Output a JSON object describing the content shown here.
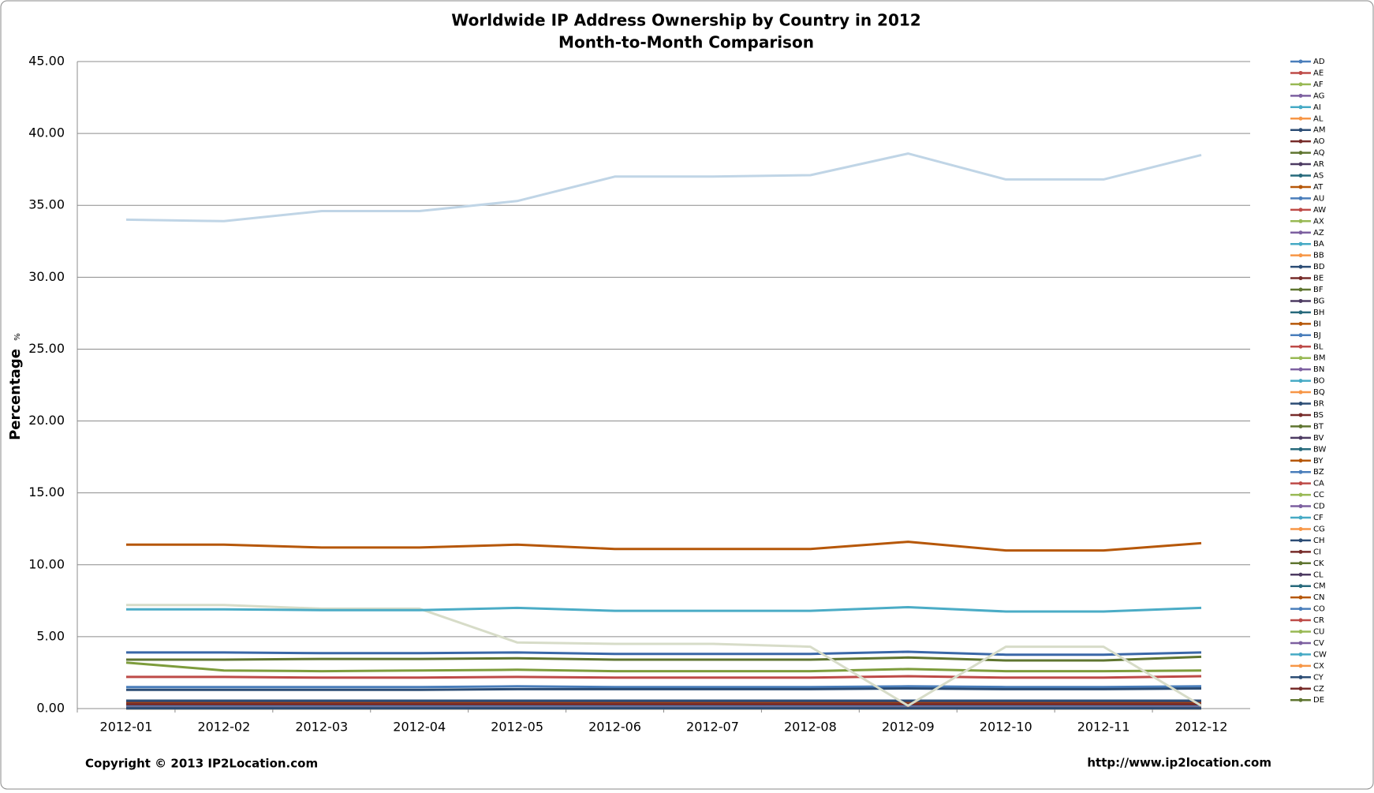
{
  "chart_data": {
    "type": "line",
    "title": "Worldwide IP Address Ownership by Country in 2012",
    "subtitle": "Month-to-Month Comparison",
    "y_label": "Percentage",
    "y_unit": "%",
    "footer_left": "Copyright © 2013 IP2Location.com",
    "footer_right": "http://www.ip2location.com",
    "categories": [
      "2012-01",
      "2012-02",
      "2012-03",
      "2012-04",
      "2012-05",
      "2012-06",
      "2012-07",
      "2012-08",
      "2012-09",
      "2012-10",
      "2012-11",
      "2012-12"
    ],
    "ylim": [
      0,
      45
    ],
    "yticks": [
      {
        "value": 0,
        "label": "0.00"
      },
      {
        "value": 5,
        "label": "5.00"
      },
      {
        "value": 10,
        "label": "10.00"
      },
      {
        "value": 15,
        "label": "15.00"
      },
      {
        "value": 20,
        "label": "20.00"
      },
      {
        "value": 25,
        "label": "25.00"
      },
      {
        "value": 30,
        "label": "30.00"
      },
      {
        "value": 35,
        "label": "35.00"
      },
      {
        "value": 40,
        "label": "40.00"
      },
      {
        "value": 45,
        "label": "45.00"
      }
    ],
    "grid": true,
    "legend": "right",
    "series": [
      {
        "name": "AD",
        "color": "#4a7ebb",
        "values": [
          0.01,
          0.01,
          0.01,
          0.01,
          0.01,
          0.01,
          0.01,
          0.01,
          0.01,
          0.01,
          0.01,
          0.01
        ]
      },
      {
        "name": "AE",
        "color": "#be4b48",
        "values": [
          0.1,
          0.1,
          0.1,
          0.1,
          0.1,
          0.1,
          0.1,
          0.1,
          0.1,
          0.1,
          0.1,
          0.1
        ]
      },
      {
        "name": "AF",
        "color": "#98b954",
        "values": [
          0.01,
          0.01,
          0.01,
          0.01,
          0.01,
          0.01,
          0.01,
          0.01,
          0.01,
          0.01,
          0.01,
          0.01
        ]
      },
      {
        "name": "AG",
        "color": "#7d60a0",
        "values": [
          0.01,
          0.01,
          0.01,
          0.01,
          0.01,
          0.01,
          0.01,
          0.01,
          0.01,
          0.01,
          0.01,
          0.01
        ]
      },
      {
        "name": "AI",
        "color": "#46aac5",
        "values": [
          0.01,
          0.01,
          0.01,
          0.01,
          0.01,
          0.01,
          0.01,
          0.01,
          0.01,
          0.01,
          0.01,
          0.01
        ]
      },
      {
        "name": "AL",
        "color": "#f79646",
        "values": [
          0.02,
          0.02,
          0.02,
          0.02,
          0.02,
          0.02,
          0.02,
          0.02,
          0.02,
          0.02,
          0.02,
          0.02
        ]
      },
      {
        "name": "AM",
        "color": "#2c4d75",
        "values": [
          0.02,
          0.02,
          0.02,
          0.02,
          0.02,
          0.02,
          0.02,
          0.02,
          0.02,
          0.02,
          0.02,
          0.02
        ]
      },
      {
        "name": "AO",
        "color": "#772c2a",
        "values": [
          0.02,
          0.02,
          0.02,
          0.02,
          0.02,
          0.02,
          0.02,
          0.02,
          0.02,
          0.02,
          0.02,
          0.02
        ]
      },
      {
        "name": "AQ",
        "color": "#5f7530",
        "values": [
          0.01,
          0.01,
          0.01,
          0.01,
          0.01,
          0.01,
          0.01,
          0.01,
          0.01,
          0.01,
          0.01,
          0.01
        ]
      },
      {
        "name": "AR",
        "color": "#4d3b62",
        "values": [
          0.45,
          0.45,
          0.45,
          0.45,
          0.45,
          0.45,
          0.45,
          0.45,
          0.45,
          0.45,
          0.45,
          0.45
        ]
      },
      {
        "name": "AS",
        "color": "#276a7c",
        "values": [
          0.01,
          0.01,
          0.01,
          0.01,
          0.01,
          0.01,
          0.01,
          0.01,
          0.01,
          0.01,
          0.01,
          0.01
        ]
      },
      {
        "name": "AT",
        "color": "#b65708",
        "values": [
          0.35,
          0.35,
          0.35,
          0.35,
          0.35,
          0.35,
          0.35,
          0.35,
          0.35,
          0.35,
          0.35,
          0.35
        ]
      },
      {
        "name": "AU",
        "color": "#4a7ebb",
        "values": [
          1.5,
          1.5,
          1.5,
          1.5,
          1.55,
          1.5,
          1.5,
          1.5,
          1.55,
          1.5,
          1.5,
          1.55
        ]
      },
      {
        "name": "AW",
        "color": "#be4b48",
        "values": [
          0.01,
          0.01,
          0.01,
          0.01,
          0.01,
          0.01,
          0.01,
          0.01,
          0.01,
          0.01,
          0.01,
          0.01
        ]
      },
      {
        "name": "AX",
        "color": "#98b954",
        "values": [
          0.01,
          0.01,
          0.01,
          0.01,
          0.01,
          0.01,
          0.01,
          0.01,
          0.01,
          0.01,
          0.01,
          0.01
        ]
      },
      {
        "name": "AZ",
        "color": "#7d60a0",
        "values": [
          0.02,
          0.02,
          0.02,
          0.02,
          0.02,
          0.02,
          0.02,
          0.02,
          0.02,
          0.02,
          0.02,
          0.02
        ]
      },
      {
        "name": "BA",
        "color": "#46aac5",
        "values": [
          0.03,
          0.03,
          0.03,
          0.03,
          0.03,
          0.03,
          0.03,
          0.03,
          0.03,
          0.03,
          0.03,
          0.03
        ]
      },
      {
        "name": "BB",
        "color": "#f79646",
        "values": [
          0.01,
          0.01,
          0.01,
          0.01,
          0.01,
          0.01,
          0.01,
          0.01,
          0.01,
          0.01,
          0.01,
          0.01
        ]
      },
      {
        "name": "BD",
        "color": "#2c4d75",
        "values": [
          0.03,
          0.03,
          0.03,
          0.03,
          0.03,
          0.03,
          0.03,
          0.03,
          0.03,
          0.03,
          0.03,
          0.03
        ]
      },
      {
        "name": "BE",
        "color": "#772c2a",
        "values": [
          0.5,
          0.5,
          0.5,
          0.5,
          0.5,
          0.5,
          0.5,
          0.5,
          0.5,
          0.5,
          0.5,
          0.5
        ]
      },
      {
        "name": "BF",
        "color": "#5f7530",
        "values": [
          0.01,
          0.01,
          0.01,
          0.01,
          0.01,
          0.01,
          0.01,
          0.01,
          0.01,
          0.01,
          0.01,
          0.01
        ]
      },
      {
        "name": "BG",
        "color": "#4d3b62",
        "values": [
          0.1,
          0.1,
          0.1,
          0.1,
          0.1,
          0.1,
          0.1,
          0.1,
          0.1,
          0.1,
          0.1,
          0.1
        ]
      },
      {
        "name": "BH",
        "color": "#276a7c",
        "values": [
          0.02,
          0.02,
          0.02,
          0.02,
          0.02,
          0.02,
          0.02,
          0.02,
          0.02,
          0.02,
          0.02,
          0.02
        ]
      },
      {
        "name": "BI",
        "color": "#b65708",
        "values": [
          0.01,
          0.01,
          0.01,
          0.01,
          0.01,
          0.01,
          0.01,
          0.01,
          0.01,
          0.01,
          0.01,
          0.01
        ]
      },
      {
        "name": "BJ",
        "color": "#4a7ebb",
        "values": [
          0.01,
          0.01,
          0.01,
          0.01,
          0.01,
          0.01,
          0.01,
          0.01,
          0.01,
          0.01,
          0.01,
          0.01
        ]
      },
      {
        "name": "BL",
        "color": "#be4b48",
        "values": [
          0.01,
          0.01,
          0.01,
          0.01,
          0.01,
          0.01,
          0.01,
          0.01,
          0.01,
          0.01,
          0.01,
          0.01
        ]
      },
      {
        "name": "BM",
        "color": "#98b954",
        "values": [
          0.01,
          0.01,
          0.01,
          0.01,
          0.01,
          0.01,
          0.01,
          0.01,
          0.01,
          0.01,
          0.01,
          0.01
        ]
      },
      {
        "name": "BN",
        "color": "#7d60a0",
        "values": [
          0.01,
          0.01,
          0.01,
          0.01,
          0.01,
          0.01,
          0.01,
          0.01,
          0.01,
          0.01,
          0.01,
          0.01
        ]
      },
      {
        "name": "BO",
        "color": "#46aac5",
        "values": [
          0.03,
          0.03,
          0.03,
          0.03,
          0.03,
          0.03,
          0.03,
          0.03,
          0.03,
          0.03,
          0.03,
          0.03
        ]
      },
      {
        "name": "BQ",
        "color": "#f79646",
        "values": [
          0.01,
          0.01,
          0.01,
          0.01,
          0.01,
          0.01,
          0.01,
          0.01,
          0.01,
          0.01,
          0.01,
          0.01
        ]
      },
      {
        "name": "BR",
        "color": "#2c4d75",
        "values": [
          1.3,
          1.3,
          1.3,
          1.3,
          1.35,
          1.35,
          1.35,
          1.35,
          1.4,
          1.35,
          1.35,
          1.4
        ]
      },
      {
        "name": "BS",
        "color": "#772c2a",
        "values": [
          0.01,
          0.01,
          0.01,
          0.01,
          0.01,
          0.01,
          0.01,
          0.01,
          0.01,
          0.01,
          0.01,
          0.01
        ]
      },
      {
        "name": "BT",
        "color": "#5f7530",
        "values": [
          0.01,
          0.01,
          0.01,
          0.01,
          0.01,
          0.01,
          0.01,
          0.01,
          0.01,
          0.01,
          0.01,
          0.01
        ]
      },
      {
        "name": "BV",
        "color": "#4d3b62",
        "values": [
          0.01,
          0.01,
          0.01,
          0.01,
          0.01,
          0.01,
          0.01,
          0.01,
          0.01,
          0.01,
          0.01,
          0.01
        ]
      },
      {
        "name": "BW",
        "color": "#276a7c",
        "values": [
          0.01,
          0.01,
          0.01,
          0.01,
          0.01,
          0.01,
          0.01,
          0.01,
          0.01,
          0.01,
          0.01,
          0.01
        ]
      },
      {
        "name": "BY",
        "color": "#b65708",
        "values": [
          0.05,
          0.05,
          0.05,
          0.05,
          0.05,
          0.05,
          0.05,
          0.05,
          0.05,
          0.05,
          0.05,
          0.05
        ]
      },
      {
        "name": "BZ",
        "color": "#4a7ebb",
        "values": [
          0.01,
          0.01,
          0.01,
          0.01,
          0.01,
          0.01,
          0.01,
          0.01,
          0.01,
          0.01,
          0.01,
          0.01
        ]
      },
      {
        "name": "CA",
        "color": "#be4b48",
        "values": [
          2.2,
          2.2,
          2.15,
          2.15,
          2.2,
          2.15,
          2.15,
          2.15,
          2.25,
          2.15,
          2.15,
          2.25
        ]
      },
      {
        "name": "CC",
        "color": "#98b954",
        "values": [
          0.01,
          0.01,
          0.01,
          0.01,
          0.01,
          0.01,
          0.01,
          0.01,
          0.01,
          0.01,
          0.01,
          0.01
        ]
      },
      {
        "name": "CD",
        "color": "#7d60a0",
        "values": [
          0.01,
          0.01,
          0.01,
          0.01,
          0.01,
          0.01,
          0.01,
          0.01,
          0.01,
          0.01,
          0.01,
          0.01
        ]
      },
      {
        "name": "CF",
        "color": "#46aac5",
        "values": [
          0.01,
          0.01,
          0.01,
          0.01,
          0.01,
          0.01,
          0.01,
          0.01,
          0.01,
          0.01,
          0.01,
          0.01
        ]
      },
      {
        "name": "CG",
        "color": "#f79646",
        "values": [
          0.01,
          0.01,
          0.01,
          0.01,
          0.01,
          0.01,
          0.01,
          0.01,
          0.01,
          0.01,
          0.01,
          0.01
        ]
      },
      {
        "name": "CH",
        "color": "#2c4d75",
        "values": [
          0.55,
          0.55,
          0.55,
          0.55,
          0.55,
          0.55,
          0.55,
          0.55,
          0.55,
          0.55,
          0.55,
          0.55
        ]
      },
      {
        "name": "CI",
        "color": "#772c2a",
        "values": [
          0.01,
          0.01,
          0.01,
          0.01,
          0.01,
          0.01,
          0.01,
          0.01,
          0.01,
          0.01,
          0.01,
          0.01
        ]
      },
      {
        "name": "CK",
        "color": "#5f7530",
        "values": [
          0.01,
          0.01,
          0.01,
          0.01,
          0.01,
          0.01,
          0.01,
          0.01,
          0.01,
          0.01,
          0.01,
          0.01
        ]
      },
      {
        "name": "CL",
        "color": "#4d3b62",
        "values": [
          0.2,
          0.2,
          0.2,
          0.2,
          0.2,
          0.2,
          0.2,
          0.2,
          0.2,
          0.2,
          0.2,
          0.2
        ]
      },
      {
        "name": "CM",
        "color": "#276a7c",
        "values": [
          0.01,
          0.01,
          0.01,
          0.01,
          0.01,
          0.01,
          0.01,
          0.01,
          0.01,
          0.01,
          0.01,
          0.01
        ]
      },
      {
        "name": "CN",
        "color": "#b65708",
        "values": [
          11.4,
          11.4,
          11.2,
          11.2,
          11.4,
          11.1,
          11.1,
          11.1,
          11.6,
          11.0,
          11.0,
          11.5
        ]
      },
      {
        "name": "CO",
        "color": "#4a7ebb",
        "values": [
          0.15,
          0.15,
          0.15,
          0.15,
          0.15,
          0.15,
          0.15,
          0.15,
          0.15,
          0.15,
          0.15,
          0.15
        ]
      },
      {
        "name": "CR",
        "color": "#be4b48",
        "values": [
          0.05,
          0.05,
          0.05,
          0.05,
          0.05,
          0.05,
          0.05,
          0.05,
          0.05,
          0.05,
          0.05,
          0.05
        ]
      },
      {
        "name": "CU",
        "color": "#98b954",
        "values": [
          0.01,
          0.01,
          0.01,
          0.01,
          0.01,
          0.01,
          0.01,
          0.01,
          0.01,
          0.01,
          0.01,
          0.01
        ]
      },
      {
        "name": "CV",
        "color": "#7d60a0",
        "values": [
          0.01,
          0.01,
          0.01,
          0.01,
          0.01,
          0.01,
          0.01,
          0.01,
          0.01,
          0.01,
          0.01,
          0.01
        ]
      },
      {
        "name": "CW",
        "color": "#46aac5",
        "values": [
          0.01,
          0.01,
          0.01,
          0.01,
          0.01,
          0.01,
          0.01,
          0.01,
          0.01,
          0.01,
          0.01,
          0.01
        ]
      },
      {
        "name": "CX",
        "color": "#f79646",
        "values": [
          0.01,
          0.01,
          0.01,
          0.01,
          0.01,
          0.01,
          0.01,
          0.01,
          0.01,
          0.01,
          0.01,
          0.01
        ]
      },
      {
        "name": "CY",
        "color": "#2c4d75",
        "values": [
          0.02,
          0.02,
          0.02,
          0.02,
          0.02,
          0.02,
          0.02,
          0.02,
          0.02,
          0.02,
          0.02,
          0.02
        ]
      },
      {
        "name": "CZ",
        "color": "#772c2a",
        "values": [
          0.3,
          0.3,
          0.3,
          0.3,
          0.3,
          0.3,
          0.3,
          0.3,
          0.3,
          0.3,
          0.3,
          0.3
        ]
      },
      {
        "name": "DE",
        "color": "#5f7530",
        "values": [
          3.4,
          3.4,
          3.45,
          3.45,
          3.5,
          3.4,
          3.4,
          3.4,
          3.55,
          3.35,
          3.35,
          3.6
        ]
      },
      {
        "color": "#7d9c3c",
        "values": [
          3.2,
          2.65,
          2.6,
          2.65,
          2.7,
          2.6,
          2.6,
          2.6,
          2.75,
          2.6,
          2.6,
          2.65
        ]
      },
      {
        "color": "#3a67a7",
        "values": [
          3.9,
          3.9,
          3.85,
          3.85,
          3.9,
          3.8,
          3.8,
          3.8,
          3.95,
          3.75,
          3.75,
          3.9
        ]
      },
      {
        "color": "#d7dcc8",
        "values": [
          7.2,
          7.2,
          6.95,
          6.95,
          4.6,
          4.5,
          4.5,
          4.3,
          0.2,
          4.3,
          4.3,
          0.2
        ]
      },
      {
        "color": "#4bacc6",
        "values": [
          6.9,
          6.9,
          6.85,
          6.85,
          7.0,
          6.8,
          6.8,
          6.8,
          7.05,
          6.75,
          6.75,
          7.0
        ]
      },
      {
        "color": "#c0d5e6",
        "values": [
          34.0,
          33.9,
          34.6,
          34.6,
          35.3,
          37.0,
          37.0,
          37.1,
          38.6,
          36.8,
          36.8,
          38.5
        ]
      }
    ]
  }
}
